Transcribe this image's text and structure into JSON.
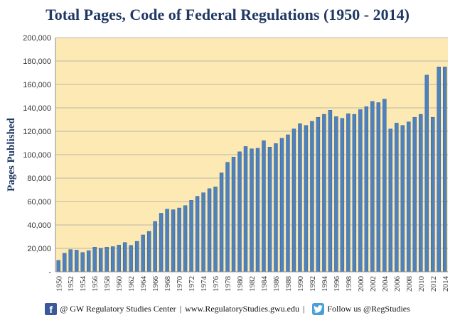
{
  "chart_data": {
    "type": "bar",
    "title": "Total Pages, Code of Federal Regulations (1950 - 2014)",
    "ylabel": "Pages Published",
    "xlabel": "",
    "ylim": [
      0,
      200000
    ],
    "yticks": [
      0,
      20000,
      40000,
      60000,
      80000,
      100000,
      120000,
      140000,
      160000,
      180000,
      200000
    ],
    "ytick_labels": [
      "-",
      "20,000",
      "40,000",
      "60,000",
      "80,000",
      "100,000",
      "120,000",
      "140,000",
      "160,000",
      "180,000",
      "200,000"
    ],
    "grid": true,
    "bar_color": "#4f81bd",
    "plot_background": "#fde9b4",
    "categories": [
      "1950",
      "1951",
      "1952",
      "1953",
      "1954",
      "1955",
      "1956",
      "1957",
      "1958",
      "1959",
      "1960",
      "1961",
      "1962",
      "1963",
      "1964",
      "1965",
      "1966",
      "1967",
      "1968",
      "1969",
      "1970",
      "1971",
      "1972",
      "1973",
      "1974",
      "1975",
      "1976",
      "1977",
      "1978",
      "1979",
      "1980",
      "1981",
      "1982",
      "1983",
      "1984",
      "1985",
      "1986",
      "1987",
      "1988",
      "1989",
      "1990",
      "1991",
      "1992",
      "1993",
      "1994",
      "1995",
      "1996",
      "1997",
      "1998",
      "1999",
      "2000",
      "2001",
      "2002",
      "2003",
      "2004",
      "2005",
      "2006",
      "2007",
      "2008",
      "2009",
      "2010",
      "2011",
      "2012",
      "2013",
      "2014"
    ],
    "xtick_labels": [
      "1950",
      "1952",
      "1954",
      "1956",
      "1958",
      "1960",
      "1962",
      "1964",
      "1966",
      "1968",
      "1970",
      "1972",
      "1974",
      "1976",
      "1978",
      "1980",
      "1982",
      "1984",
      "1986",
      "1988",
      "1990",
      "1992",
      "1994",
      "1996",
      "1998",
      "2000",
      "2002",
      "2004",
      "2006",
      "2008",
      "2010",
      "2012",
      "2014"
    ],
    "values": [
      9745,
      15800,
      19000,
      18500,
      16500,
      18000,
      21000,
      20000,
      21000,
      21500,
      22800,
      25000,
      22500,
      26000,
      31500,
      34500,
      43000,
      50000,
      53500,
      53000,
      54500,
      56500,
      61000,
      64500,
      67500,
      71000,
      72500,
      84500,
      93500,
      98000,
      102500,
      107000,
      105000,
      105500,
      112000,
      106500,
      109500,
      114000,
      117000,
      122000,
      126500,
      125000,
      128500,
      132000,
      134500,
      138000,
      132500,
      131000,
      135000,
      134500,
      138500,
      141000,
      145500,
      144500,
      147500,
      122000,
      127000,
      125000,
      128000,
      132000,
      134500,
      168000,
      132000,
      175000,
      175000
    ]
  },
  "footer": {
    "fb_letter": "f",
    "center_text": "@ GW Regulatory Studies Center",
    "separator": "|",
    "website": "www.RegulatoryStudies.gwu.edu",
    "follow_text": "Follow us @RegStudies",
    "facebook_icon": "facebook-icon",
    "twitter_icon": "twitter-icon"
  }
}
